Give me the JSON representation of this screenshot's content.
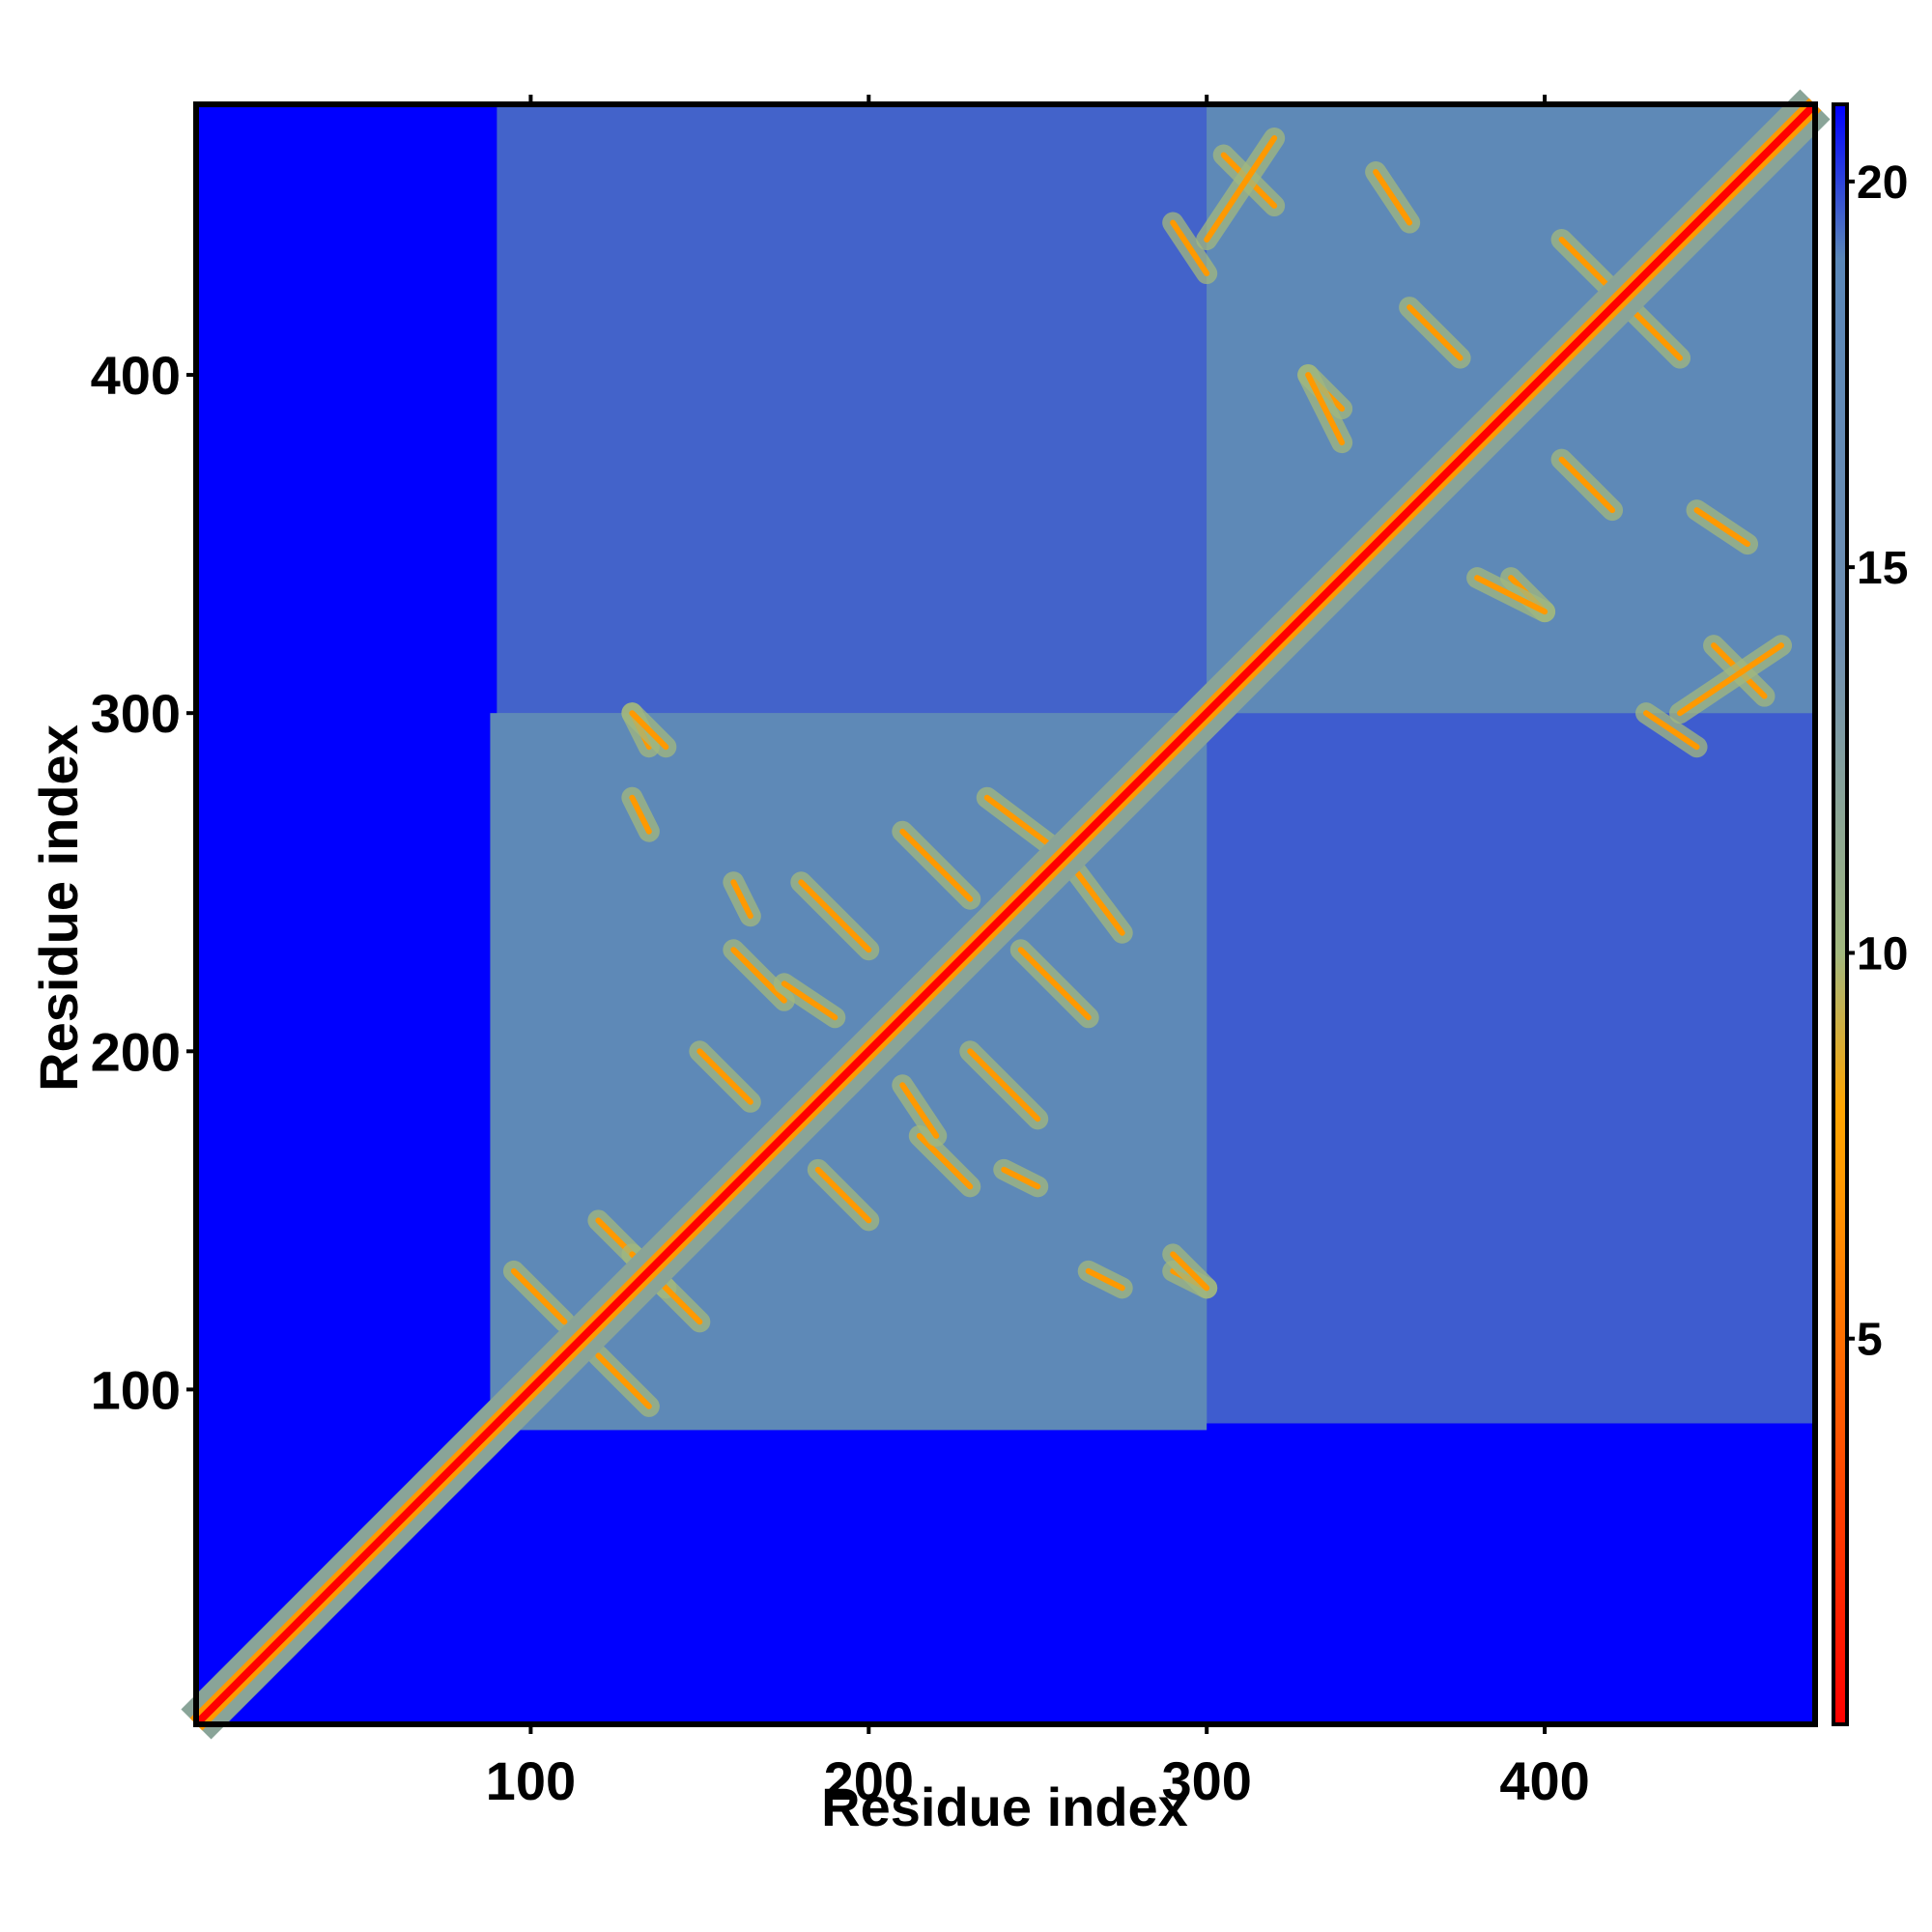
{
  "chart_data": {
    "type": "heatmap",
    "title": "",
    "xlabel": "Residue index",
    "ylabel": "Residue index",
    "xlim": [
      1,
      480
    ],
    "ylim": [
      1,
      480
    ],
    "x_ticks": [
      100,
      200,
      300,
      400
    ],
    "y_ticks": [
      100,
      200,
      300,
      400
    ],
    "colorbar": {
      "ticks": [
        5,
        10,
        15,
        20
      ],
      "range": [
        0,
        21
      ],
      "stops": [
        {
          "value": 0,
          "color": "#ff0000"
        },
        {
          "value": 4,
          "color": "#ff5a00"
        },
        {
          "value": 7,
          "color": "#ff9900"
        },
        {
          "value": 8,
          "color": "#ffa500"
        },
        {
          "value": 10,
          "color": "#a2b87e"
        },
        {
          "value": 14,
          "color": "#6f8fb2"
        },
        {
          "value": 19,
          "color": "#5a87b8"
        },
        {
          "value": 21,
          "color": "#0000ff"
        }
      ]
    },
    "value_description": "pairwise residue distance map; color encodes distance",
    "features": {
      "diagonal": {
        "from": 1,
        "to": 480,
        "value": 0
      },
      "structured_block_lower": {
        "range": [
          88,
          300
        ],
        "background_value": 18
      },
      "structured_block_upper": {
        "range": [
          300,
          480
        ],
        "background_value": 18
      },
      "off_diagonal_region": {
        "x_range": [
          90,
          480
        ],
        "y_range": [
          90,
          480
        ],
        "background_value": 18
      },
      "unstructured_tail": {
        "range": [
          1,
          88
        ],
        "value": 21
      }
    },
    "contact_stripes": [
      {
        "from": [
          95,
          135
        ],
        "to": [
          110,
          120
        ]
      },
      {
        "from": [
          120,
          150
        ],
        "to": [
          140,
          130
        ]
      },
      {
        "from": [
          150,
          200
        ],
        "to": [
          165,
          185
        ]
      },
      {
        "from": [
          160,
          230
        ],
        "to": [
          175,
          215
        ]
      },
      {
        "from": [
          180,
          250
        ],
        "to": [
          200,
          230
        ]
      },
      {
        "from": [
          210,
          265
        ],
        "to": [
          230,
          245
        ]
      },
      {
        "from": [
          235,
          275
        ],
        "to": [
          255,
          260
        ]
      },
      {
        "from": [
          265,
          135
        ],
        "to": [
          275,
          130
        ]
      },
      {
        "from": [
          290,
          135
        ],
        "to": [
          300,
          130
        ]
      },
      {
        "from": [
          130,
          300
        ],
        "to": [
          140,
          290
        ]
      },
      {
        "from": [
          210,
          190
        ],
        "to": [
          220,
          175
        ]
      },
      {
        "from": [
          240,
          165
        ],
        "to": [
          250,
          160
        ]
      },
      {
        "from": [
          330,
          400
        ],
        "to": [
          340,
          390
        ]
      },
      {
        "from": [
          360,
          420
        ],
        "to": [
          375,
          405
        ]
      },
      {
        "from": [
          380,
          340
        ],
        "to": [
          400,
          330
        ]
      },
      {
        "from": [
          405,
          440
        ],
        "to": [
          420,
          425
        ]
      },
      {
        "from": [
          430,
          300
        ],
        "to": [
          445,
          290
        ]
      },
      {
        "from": [
          450,
          320
        ],
        "to": [
          465,
          305
        ]
      },
      {
        "from": [
          300,
          440
        ],
        "to": [
          320,
          470
        ]
      },
      {
        "from": [
          350,
          460
        ],
        "to": [
          360,
          445
        ]
      }
    ]
  }
}
